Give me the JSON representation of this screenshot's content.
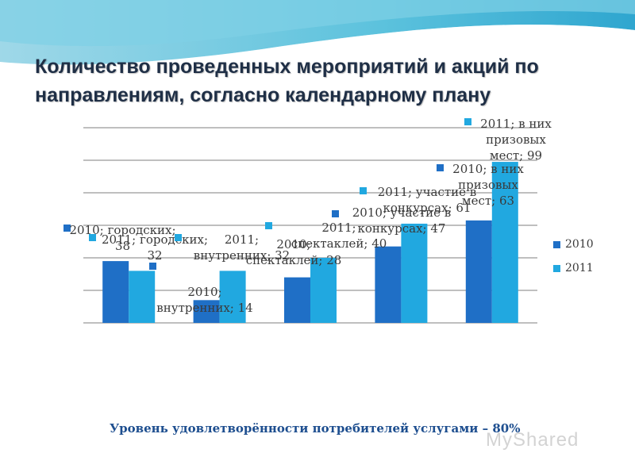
{
  "title": "Количество проведенных мероприятий и акций по направлениям, согласно календарному плану",
  "colors": {
    "s2010": "#1f6fc6",
    "s2011": "#21a8e0",
    "grid": "#555555",
    "accent": "#1d4e8f"
  },
  "chart_data": {
    "type": "bar",
    "ylim": [
      0,
      120
    ],
    "grid": true,
    "legend": "right",
    "categories": [
      "",
      "",
      "",
      "",
      ""
    ],
    "series": [
      {
        "name": "2010",
        "values": [
          38,
          14,
          28,
          47,
          63
        ]
      },
      {
        "name": "2011",
        "values": [
          32,
          32,
          40,
          61,
          99
        ]
      }
    ],
    "data_labels": [
      [
        "2010; городских; 38",
        "2010; внутренних; 14",
        "2010; спектаклей; 28",
        "2010; участие в конкурсах; 47",
        "2010; в них призовых мест; 63"
      ],
      [
        "2011; городских; 32",
        "2011; внутренних; 32",
        "2011; спектаклей; 40",
        "2011; участие в конкурсах; 61",
        "2011; в них призовых мест; 99"
      ]
    ]
  },
  "footer": "Уровень удовлетворённости потребителей услугами – 80%",
  "watermark": "MyShared"
}
